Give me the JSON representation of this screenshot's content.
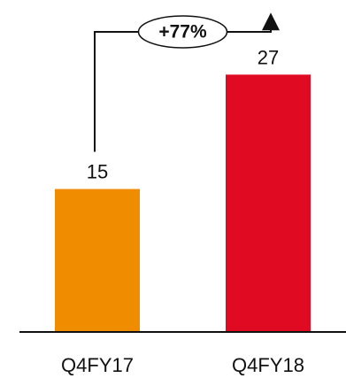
{
  "chart_data": {
    "type": "bar",
    "categories": [
      "Q4FY17",
      "Q4FY18"
    ],
    "values": [
      15,
      27
    ],
    "value_labels": [
      "15",
      "27"
    ],
    "bar_colors": [
      "#F08C00",
      "#E00A23"
    ],
    "ylim": [
      0,
      30
    ],
    "grid": false,
    "legend": "none",
    "annotation": {
      "text": "+77%",
      "from": "Q4FY17",
      "to": "Q4FY18"
    },
    "title": "",
    "xlabel": "",
    "ylabel": ""
  }
}
